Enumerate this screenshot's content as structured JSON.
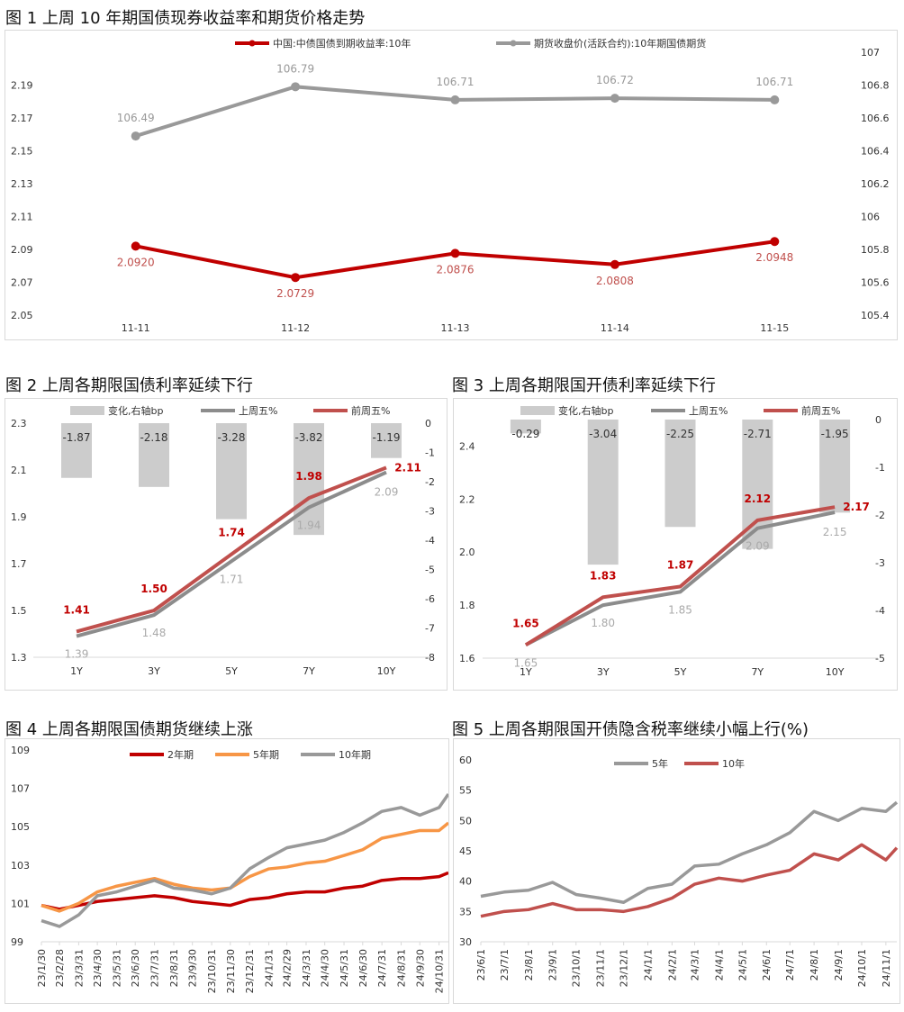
{
  "chart_data": [
    {
      "id": "c1",
      "type": "line",
      "title": "图 1  上周 10 年期国债现券收益率和期货价格走势",
      "categories": [
        "11-11",
        "11-12",
        "11-13",
        "11-14",
        "11-15"
      ],
      "ylim_left": [
        2.05,
        2.21
      ],
      "yticks_left": [
        "2.05",
        "2.07",
        "2.09",
        "2.11",
        "2.13",
        "2.15",
        "2.17",
        "2.19"
      ],
      "ylim_right": [
        105.4,
        107
      ],
      "yticks_right": [
        "105.4",
        "105.6",
        "105.8",
        "106",
        "106.2",
        "106.4",
        "106.6",
        "106.8",
        "107"
      ],
      "legend_position": "top",
      "grid": false,
      "series": [
        {
          "name": "中国:中债国债到期收益率:10年",
          "axis": "left",
          "color": "#c00000",
          "values": [
            2.092,
            2.0729,
            2.0876,
            2.0808,
            2.0948
          ],
          "labels": [
            "2.0920",
            "2.0729",
            "2.0876",
            "2.0808",
            "2.0948"
          ]
        },
        {
          "name": "期货收盘价(活跃合约):10年期国债期货",
          "axis": "right",
          "color": "#999999",
          "values": [
            106.49,
            106.79,
            106.71,
            106.72,
            106.71
          ],
          "labels": [
            "106.49",
            "106.79",
            "106.71",
            "106.72",
            "106.71"
          ]
        }
      ]
    },
    {
      "id": "c2",
      "type": "bar+line",
      "title": "图 2  上周各期限国债利率延续下行",
      "categories": [
        "1Y",
        "3Y",
        "5Y",
        "7Y",
        "10Y"
      ],
      "ylim_left": [
        1.3,
        2.3
      ],
      "yticks_left": [
        "1.3",
        "1.5",
        "1.7",
        "1.9",
        "2.1",
        "2.3"
      ],
      "ylim_right": [
        -8,
        0
      ],
      "yticks_right": [
        "-8",
        "-7",
        "-6",
        "-5",
        "-4",
        "-3",
        "-2",
        "-1",
        "0"
      ],
      "legend_position": "top",
      "bars": {
        "name": "变化,右轴bp",
        "color": "#cccccc",
        "values": [
          -1.87,
          -2.18,
          -3.28,
          -3.82,
          -1.19
        ],
        "labels": [
          "-1.87",
          "-2.18",
          "-3.28",
          "-3.82",
          "-1.19"
        ]
      },
      "series": [
        {
          "name": "上周五%",
          "color": "#8c8c8c",
          "values": [
            1.39,
            1.48,
            1.71,
            1.94,
            2.09
          ],
          "labels": [
            "1.39",
            "1.48",
            "1.71",
            "1.94",
            "2.09"
          ]
        },
        {
          "name": "前周五%",
          "color": "#c0504d",
          "values": [
            1.41,
            1.5,
            1.74,
            1.98,
            2.11
          ],
          "labels": [
            "1.41",
            "1.50",
            "1.74",
            "1.98",
            "2.11"
          ]
        }
      ]
    },
    {
      "id": "c3",
      "type": "bar+line",
      "title": "图 3  上周各期限国开债利率延续下行",
      "categories": [
        "1Y",
        "3Y",
        "5Y",
        "7Y",
        "10Y"
      ],
      "ylim_left": [
        1.6,
        2.5
      ],
      "yticks_left": [
        "1.6",
        "1.8",
        "2.0",
        "2.2",
        "2.4"
      ],
      "ylim_right": [
        -5,
        0
      ],
      "yticks_right": [
        "-5",
        "-4",
        "-3",
        "-2",
        "-1",
        "0"
      ],
      "legend_position": "top",
      "bars": {
        "name": "变化,右轴bp",
        "color": "#cccccc",
        "values": [
          -0.29,
          -3.04,
          -2.25,
          -2.71,
          -1.95
        ],
        "labels": [
          "-0.29",
          "-3.04",
          "-2.25",
          "-2.71",
          "-1.95"
        ]
      },
      "series": [
        {
          "name": "上周五%",
          "color": "#8c8c8c",
          "values": [
            1.65,
            1.8,
            1.85,
            2.09,
            2.15
          ],
          "labels": [
            "1.65",
            "1.80",
            "1.85",
            "2.09",
            "2.15"
          ]
        },
        {
          "name": "前周五%",
          "color": "#c0504d",
          "values": [
            1.65,
            1.83,
            1.87,
            2.12,
            2.17
          ],
          "labels": [
            "1.65",
            "1.83",
            "1.87",
            "2.12",
            "2.17"
          ]
        }
      ]
    },
    {
      "id": "c4",
      "type": "line",
      "title": "图 4  上周各期限国债期货继续上涨",
      "ylim": [
        99,
        109
      ],
      "yticks": [
        "99",
        "101",
        "103",
        "105",
        "107",
        "109"
      ],
      "xticks": [
        "23/1/30",
        "23/2/28",
        "23/3/31",
        "23/4/30",
        "23/5/31",
        "23/6/30",
        "23/7/31",
        "23/8/31",
        "23/9/30",
        "23/10/31",
        "23/11/30",
        "23/12/31",
        "24/1/31",
        "24/2/29",
        "24/3/31",
        "24/4/30",
        "24/5/31",
        "24/6/30",
        "24/7/31",
        "24/8/31",
        "24/9/30",
        "24/10/31"
      ],
      "x": [
        "2023-01-30",
        "2023-02-28",
        "2023-03-31",
        "2023-04-30",
        "2023-05-31",
        "2023-06-30",
        "2023-07-31",
        "2023-08-31",
        "2023-09-30",
        "2023-10-31",
        "2023-11-30",
        "2023-12-31",
        "2024-01-31",
        "2024-02-29",
        "2024-03-31",
        "2024-04-30",
        "2024-05-31",
        "2024-06-30",
        "2024-07-31",
        "2024-08-31",
        "2024-09-30",
        "2024-10-31",
        "2024-11-15"
      ],
      "legend_position": "top",
      "series": [
        {
          "name": "2年期",
          "color": "#c00000",
          "values": [
            100.9,
            100.7,
            100.9,
            101.1,
            101.2,
            101.3,
            101.4,
            101.3,
            101.1,
            101.0,
            100.9,
            101.2,
            101.3,
            101.5,
            101.6,
            101.6,
            101.8,
            101.9,
            102.2,
            102.3,
            102.3,
            102.4,
            102.6
          ]
        },
        {
          "name": "5年期",
          "color": "#f79646",
          "values": [
            100.9,
            100.6,
            101.0,
            101.6,
            101.9,
            102.1,
            102.3,
            102.0,
            101.8,
            101.7,
            101.8,
            102.4,
            102.8,
            102.9,
            103.1,
            103.2,
            103.5,
            103.8,
            104.4,
            104.6,
            104.8,
            104.8,
            105.2
          ]
        },
        {
          "name": "10年期",
          "color": "#999999",
          "values": [
            100.1,
            99.8,
            100.4,
            101.4,
            101.6,
            101.9,
            102.2,
            101.8,
            101.7,
            101.5,
            101.8,
            102.8,
            103.4,
            103.9,
            104.1,
            104.3,
            104.7,
            105.2,
            105.8,
            106.0,
            105.6,
            106.0,
            106.7
          ]
        }
      ]
    },
    {
      "id": "c5",
      "type": "line",
      "title": "图 5  上周各期限国开债隐含税率继续小幅上行(%)",
      "ylim": [
        30,
        60
      ],
      "yticks": [
        "30",
        "35",
        "40",
        "45",
        "50",
        "55",
        "60"
      ],
      "xticks": [
        "23/6/1",
        "23/7/1",
        "23/8/1",
        "23/9/1",
        "23/10/1",
        "23/11/1",
        "23/12/1",
        "24/1/1",
        "24/2/1",
        "24/3/1",
        "24/4/1",
        "24/5/1",
        "24/6/1",
        "24/7/1",
        "24/8/1",
        "24/9/1",
        "24/10/1",
        "24/11/1"
      ],
      "x": [
        "2023-06-01",
        "2023-07-01",
        "2023-08-01",
        "2023-09-01",
        "2023-10-01",
        "2023-11-01",
        "2023-12-01",
        "2024-01-01",
        "2024-02-01",
        "2024-03-01",
        "2024-04-01",
        "2024-05-01",
        "2024-06-01",
        "2024-07-01",
        "2024-08-01",
        "2024-09-01",
        "2024-10-01",
        "2024-11-01",
        "2024-11-15"
      ],
      "legend_position": "top",
      "series": [
        {
          "name": "5年",
          "color": "#999999",
          "values": [
            37.5,
            38.2,
            38.5,
            39.8,
            37.8,
            37.2,
            36.5,
            38.8,
            39.5,
            42.5,
            42.8,
            44.5,
            46.0,
            48.0,
            51.5,
            50.0,
            52.0,
            51.5,
            53.0
          ]
        },
        {
          "name": "10年",
          "color": "#c0504d",
          "values": [
            34.2,
            35.0,
            35.3,
            36.3,
            35.3,
            35.3,
            35.0,
            35.8,
            37.2,
            39.5,
            40.5,
            40.0,
            41.0,
            41.8,
            44.5,
            43.5,
            46.0,
            43.5,
            45.5
          ]
        }
      ]
    }
  ]
}
